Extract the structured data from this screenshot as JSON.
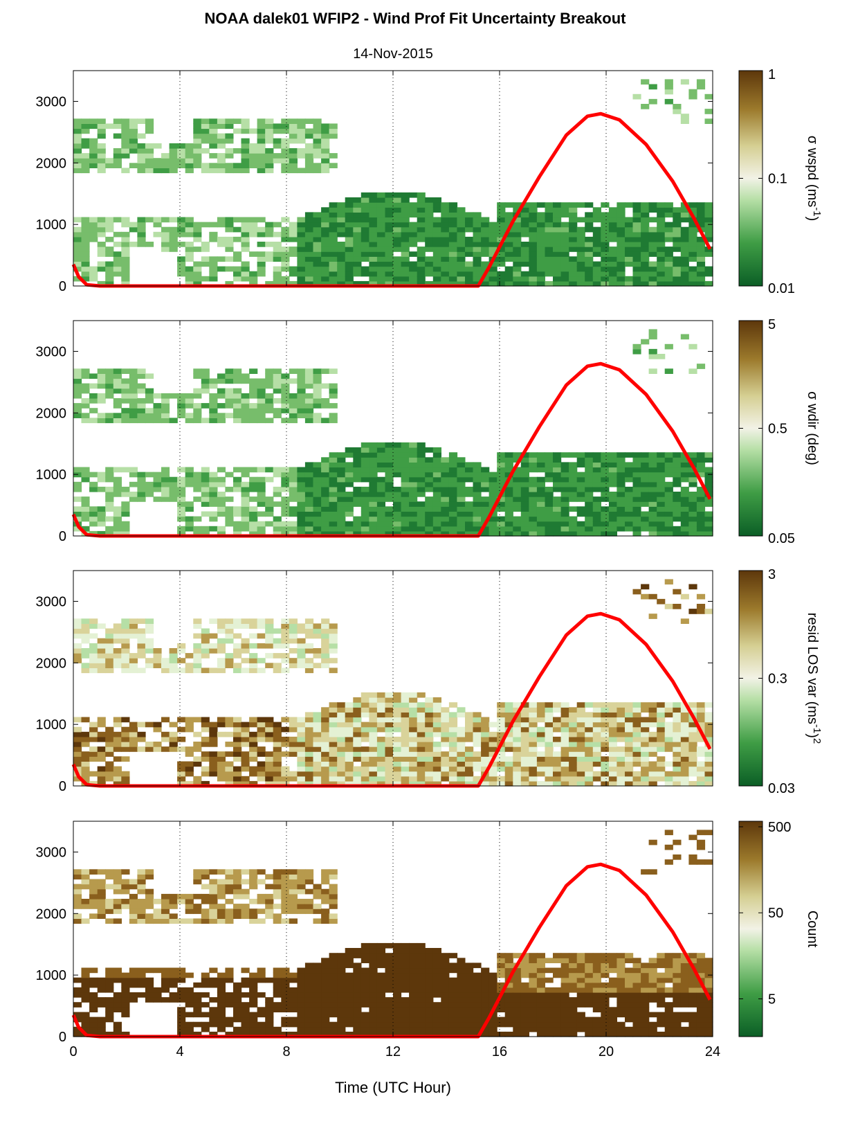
{
  "chart_data": {
    "title": "NOAA dalek01 WFIP2 - Wind Prof Fit Uncertainty Breakout",
    "subtitle": "14-Nov-2015",
    "xlabel": "Time (UTC Hour)",
    "xlim": [
      0,
      24
    ],
    "xticks": [
      0,
      4,
      8,
      12,
      16,
      20,
      24
    ],
    "ylim": [
      0,
      3500
    ],
    "yticks": [
      0,
      1000,
      2000,
      3000
    ],
    "vertical_dotted_gridlines_at": [
      4,
      8,
      12,
      16,
      20
    ],
    "overlay_curve": {
      "color": "#ff0000",
      "points": [
        [
          0.0,
          350
        ],
        [
          0.2,
          150
        ],
        [
          0.5,
          20
        ],
        [
          1.0,
          0
        ],
        [
          15.2,
          0
        ],
        [
          15.6,
          300
        ],
        [
          16.5,
          1050
        ],
        [
          17.5,
          1780
        ],
        [
          18.5,
          2450
        ],
        [
          19.3,
          2760
        ],
        [
          19.8,
          2800
        ],
        [
          20.5,
          2700
        ],
        [
          21.5,
          2300
        ],
        [
          22.5,
          1700
        ],
        [
          23.3,
          1100
        ],
        [
          23.9,
          600
        ]
      ]
    },
    "panels": [
      {
        "type": "heatmap",
        "colorbar_label": "σ wspd (ms",
        "colorbar_label_sup": "-1",
        "colorbar_label_end": ")",
        "colorbar_ticks": [
          "1",
          "0.1",
          "0.01"
        ],
        "colormap": "green-to-brown",
        "log_scale": true
      },
      {
        "type": "heatmap",
        "colorbar_label": "σ wdir (deg)",
        "colorbar_ticks": [
          "5",
          "0.5",
          "0.05"
        ],
        "colormap": "green-to-brown",
        "log_scale": true
      },
      {
        "type": "heatmap",
        "colorbar_label": "resid LOS var (ms",
        "colorbar_label_sup": "-1",
        "colorbar_label_end": ")",
        "colorbar_label_sup2": "2",
        "colorbar_ticks": [
          "3",
          "0.3",
          "0.03"
        ],
        "colormap": "green-to-brown",
        "log_scale": true
      },
      {
        "type": "heatmap",
        "colorbar_label": "Count",
        "colorbar_ticks": [
          "500",
          "50",
          "5"
        ],
        "colormap": "green-to-brown",
        "log_scale": true
      }
    ]
  },
  "colors": {
    "curve": "#ff0000",
    "low": "#0a6b2a",
    "mid": "#f4f4e0",
    "high": "#6b3c0a"
  }
}
